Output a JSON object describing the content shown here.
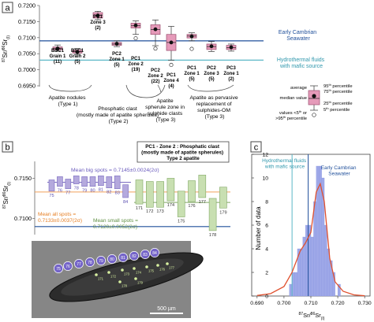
{
  "panel_a": {
    "label": "a",
    "y_axis_label_num": "87",
    "y_axis_label_mid": "Sr/",
    "y_axis_label_den": "86",
    "y_axis_label_end": "Sr",
    "y_axis_label_sub": "(I)",
    "ref_lines": [
      {
        "label": "Early Cambrian",
        "label2": "Seawater",
        "value": 0.709,
        "color": "#1f4f9a"
      },
      {
        "label": "Hydrothermal fluids",
        "label2": "with mafic source",
        "value": 0.703,
        "color": "#5bb7c6"
      }
    ],
    "box_label_lines": [
      [
        "BSC1",
        "Grain 1",
        "(11)"
      ],
      [
        "BSC1",
        "Grain 2",
        "(5)"
      ],
      [
        "PC1",
        "Zone 3",
        "(2)"
      ],
      [
        "PC2",
        "Zone 1",
        "(5)"
      ],
      [
        "PC1",
        "Zone 2",
        "(19)"
      ],
      [
        "PC2",
        "Zone 2",
        "(22)"
      ],
      [
        "PC1",
        "Zone 4",
        "(4)"
      ],
      [
        "PC1",
        "Zone 1",
        "(5)"
      ],
      [
        "PC2",
        "Zone 3",
        "(5)"
      ],
      [
        "PC3",
        "Zone 1",
        "(2)"
      ]
    ],
    "group_labels": [
      [
        "Apatite nodules",
        "(Type 1)"
      ],
      [
        "Phosphatic clast",
        "(mostly made of apatite spherules)",
        "(Type 2)"
      ],
      [
        "Apatite",
        "spherule zone in",
        "sulphide clasts",
        "(Type 3)"
      ],
      [
        "Apatite as pervasive",
        "replacement of",
        "sulphides-OM",
        "(Type 3)"
      ]
    ],
    "legend": {
      "average": "average",
      "median": "median value",
      "p95": "95",
      "p75": "75",
      "p25": "25",
      "p5": "5",
      "pct": "percentile",
      "outliers1": "values <5",
      "outliers1_sup": "th",
      "outliers1_end": " or",
      "outliers2": ">95",
      "outliers2_sup": "th",
      "outliers2_end": " percentile"
    }
  },
  "panel_b": {
    "label": "b",
    "header": [
      "PC1 - Zone 2 : Phosphatic clast",
      "(mostly made of apatite spherules)",
      "Type 2 apatite"
    ],
    "mean_big": "Mean big spots = 0.7145±0.0024(2σ)",
    "mean_all": [
      "Mean all spots =",
      "0.7133±0.0037(2σ)"
    ],
    "mean_small": [
      "Mean small spots =",
      "0.7120±0.0052(2σ)"
    ],
    "y_axis_label_num": "87",
    "y_axis_label_mid": "Sr/",
    "y_axis_label_den": "86",
    "y_axis_label_end": "Sr",
    "y_axis_label_sub": "(I)",
    "scale_bar": "500 µm",
    "spot_labels": [
      "75",
      "76",
      "77",
      "78",
      "79",
      "80",
      "81",
      "82",
      "83",
      "84",
      "171",
      "172",
      "173",
      "174",
      "175",
      "176",
      "177",
      "178",
      "179"
    ],
    "image_spot_labels": [
      "76",
      "77",
      "78",
      "79",
      "80",
      "81",
      "82",
      "83",
      "84",
      "171",
      "172",
      "173",
      "174",
      "175",
      "176",
      "177",
      "178",
      "179",
      "75"
    ]
  },
  "panel_c": {
    "label": "c",
    "annot_hydro": [
      "Hydrothermal fluids",
      "with mafic source"
    ],
    "annot_sea": [
      "Early Cambrian",
      "Seawater"
    ]
  },
  "chart_data": [
    {
      "type": "box",
      "title": "",
      "ylim": [
        0.695,
        0.72
      ],
      "yticks": [
        "0.6950",
        "0.7000",
        "0.7050",
        "0.7100",
        "0.7150",
        "0.7200"
      ],
      "reference_lines": [
        {
          "name": "Early Cambrian Seawater",
          "value": 0.709
        },
        {
          "name": "Hydrothermal fluids with mafic source",
          "value": 0.703
        }
      ],
      "boxes": [
        {
          "label": "BSC1 Grain 1 (11)",
          "p5": 0.7058,
          "p25": 0.7062,
          "median": 0.7067,
          "mean": 0.7066,
          "p75": 0.7071,
          "p95": 0.7077,
          "outliers": []
        },
        {
          "label": "BSC1 Grain 2 (5)",
          "p5": 0.7048,
          "p25": 0.7052,
          "median": 0.7056,
          "mean": 0.7055,
          "p75": 0.7061,
          "p95": 0.7066,
          "outliers": []
        },
        {
          "label": "PC1 Zone 3 (2)",
          "p5": 0.7156,
          "p25": 0.7161,
          "median": 0.717,
          "mean": 0.7169,
          "p75": 0.7178,
          "p95": 0.7182,
          "outliers": []
        },
        {
          "label": "PC2 Zone 1 (5)",
          "p5": 0.7072,
          "p25": 0.7076,
          "median": 0.708,
          "mean": 0.7081,
          "p75": 0.7085,
          "p95": 0.709,
          "outliers": []
        },
        {
          "label": "PC1 Zone 2 (19)",
          "p5": 0.711,
          "p25": 0.713,
          "median": 0.7137,
          "mean": 0.7138,
          "p75": 0.7145,
          "p95": 0.7152,
          "outliers": [
            0.7098
          ]
        },
        {
          "label": "PC2 Zone 2 (22)",
          "p5": 0.7075,
          "p25": 0.711,
          "median": 0.7125,
          "mean": 0.7126,
          "p75": 0.714,
          "p95": 0.7155,
          "outliers": [
            0.7066
          ]
        },
        {
          "label": "PC1 Zone 4 (4)",
          "p5": 0.703,
          "p25": 0.706,
          "median": 0.7085,
          "mean": 0.7085,
          "p75": 0.711,
          "p95": 0.7135,
          "outliers": [
            0.7015
          ]
        },
        {
          "label": "PC1 Zone 1 (5)",
          "p5": 0.709,
          "p25": 0.7099,
          "median": 0.7105,
          "mean": 0.7104,
          "p75": 0.711,
          "p95": 0.7115,
          "outliers": [
            0.7065
          ]
        },
        {
          "label": "PC2 Zone 3 (5)",
          "p5": 0.7057,
          "p25": 0.7063,
          "median": 0.7072,
          "mean": 0.7073,
          "p75": 0.708,
          "p95": 0.7088,
          "outliers": []
        },
        {
          "label": "PC3 Zone 1 (2)",
          "p5": 0.7058,
          "p25": 0.7063,
          "median": 0.7069,
          "mean": 0.707,
          "p75": 0.7076,
          "p95": 0.708,
          "outliers": []
        }
      ]
    },
    {
      "type": "bar",
      "title": "PC1 - Zone 2 : Phosphatic clast (mostly made of apatite spherules) Type 2 apatite",
      "ylim": [
        0.708,
        0.717
      ],
      "ytick_labels": [
        "0.7150",
        "0.7100"
      ],
      "series": [
        {
          "name": "Mean big spots",
          "mean": 0.7145,
          "two_sigma": 0.0024,
          "points": [
            {
              "spot": "75",
              "value": 0.7141,
              "err": 0.0007
            },
            {
              "spot": "76",
              "value": 0.7146,
              "err": 0.0006
            },
            {
              "spot": "77",
              "value": 0.7143,
              "err": 0.0006
            },
            {
              "spot": "78",
              "value": 0.7148,
              "err": 0.0005
            },
            {
              "spot": "79",
              "value": 0.7146,
              "err": 0.0006
            },
            {
              "spot": "80",
              "value": 0.7146,
              "err": 0.0006
            },
            {
              "spot": "81",
              "value": 0.7147,
              "err": 0.0006
            },
            {
              "spot": "82",
              "value": 0.7145,
              "err": 0.0007
            },
            {
              "spot": "83",
              "value": 0.7145,
              "err": 0.0008
            },
            {
              "spot": "84",
              "value": 0.7134,
              "err": 0.0008
            }
          ]
        },
        {
          "name": "Mean small spots",
          "mean": 0.712,
          "two_sigma": 0.0052,
          "points": [
            {
              "spot": "171",
              "value": 0.7133,
              "err": 0.0015
            },
            {
              "spot": "172",
              "value": 0.713,
              "err": 0.0016
            },
            {
              "spot": "173",
              "value": 0.713,
              "err": 0.0016
            },
            {
              "spot": "174",
              "value": 0.7136,
              "err": 0.0014
            },
            {
              "spot": "175",
              "value": 0.7118,
              "err": 0.0016
            },
            {
              "spot": "176",
              "value": 0.7134,
              "err": 0.0013
            },
            {
              "spot": "177",
              "value": 0.714,
              "err": 0.0014
            },
            {
              "spot": "178",
              "value": 0.7105,
              "err": 0.002
            },
            {
              "spot": "179",
              "value": 0.7126,
              "err": 0.0013
            }
          ]
        }
      ],
      "mean_all": 0.7133,
      "mean_all_two_sigma": 0.0037,
      "reference_line": 0.709
    },
    {
      "type": "histogram",
      "title": "",
      "xlabel": "87Sr/86Sr(I)",
      "ylabel": "Number of data",
      "xlim": [
        0.688,
        0.732
      ],
      "ylim": [
        0,
        12
      ],
      "xticks": [
        "0.690",
        "0.700",
        "0.710",
        "0.720",
        "0.730"
      ],
      "yticks": [
        "0",
        "2",
        "4",
        "6",
        "8",
        "10",
        "12"
      ],
      "bin_width": 0.001,
      "bins": [
        {
          "x": 0.702,
          "count": 1
        },
        {
          "x": 0.703,
          "count": 2
        },
        {
          "x": 0.704,
          "count": 2
        },
        {
          "x": 0.705,
          "count": 4
        },
        {
          "x": 0.706,
          "count": 4
        },
        {
          "x": 0.707,
          "count": 5
        },
        {
          "x": 0.708,
          "count": 6
        },
        {
          "x": 0.709,
          "count": 6
        },
        {
          "x": 0.71,
          "count": 5
        },
        {
          "x": 0.711,
          "count": 8
        },
        {
          "x": 0.712,
          "count": 11
        },
        {
          "x": 0.713,
          "count": 11
        },
        {
          "x": 0.714,
          "count": 10
        },
        {
          "x": 0.715,
          "count": 6
        },
        {
          "x": 0.716,
          "count": 4
        },
        {
          "x": 0.717,
          "count": 3
        },
        {
          "x": 0.718,
          "count": 2
        },
        {
          "x": 0.72,
          "count": 1
        }
      ],
      "density_curve": [
        [
          0.69,
          0.05
        ],
        [
          0.695,
          0.2
        ],
        [
          0.7,
          0.8
        ],
        [
          0.703,
          2.0
        ],
        [
          0.706,
          3.8
        ],
        [
          0.708,
          4.5
        ],
        [
          0.71,
          5.4
        ],
        [
          0.712,
          8.8
        ],
        [
          0.7135,
          9.5
        ],
        [
          0.715,
          8.0
        ],
        [
          0.717,
          3.2
        ],
        [
          0.719,
          1.2
        ],
        [
          0.722,
          0.4
        ],
        [
          0.726,
          0.1
        ],
        [
          0.73,
          0.02
        ]
      ],
      "reference_lines": [
        {
          "name": "Hydrothermal fluids with mafic source",
          "value": 0.703
        },
        {
          "name": "Early Cambrian Seawater",
          "value": 0.709
        }
      ]
    }
  ],
  "colors": {
    "box_fill": "#e59ab9",
    "box_stroke": "#9a4d6d",
    "sea_line": "#1f4f9a",
    "hydro_line": "#5bb7c6",
    "big_bar": "#b4a9dd",
    "big_bar_stroke": "#7a6cc0",
    "small_bar": "#c8dfb1",
    "small_bar_stroke": "#80a864",
    "mean_all_line": "#f2a15a",
    "hist_bar": "#9ea8e8",
    "density": "#e0512f",
    "spot_circle": "#7464c8"
  }
}
